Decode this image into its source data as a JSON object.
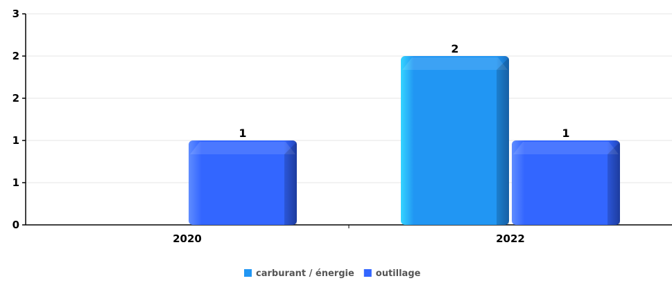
{
  "chart_data": {
    "type": "bar",
    "categories": [
      "2020",
      "2022"
    ],
    "series": [
      {
        "name": "carburant / énergie",
        "values": [
          0,
          2
        ],
        "color": "#2196F3"
      },
      {
        "name": "outillage",
        "values": [
          1,
          1
        ],
        "color": "#3366FF"
      }
    ],
    "data_labels": [
      [
        "",
        "2"
      ],
      [
        "1",
        "1"
      ]
    ],
    "y_tick_labels": [
      "0",
      "1",
      "1",
      "2",
      "2",
      "3"
    ],
    "ylim": [
      0,
      2.5
    ],
    "grid": true,
    "legend_position": "bottom-center"
  }
}
